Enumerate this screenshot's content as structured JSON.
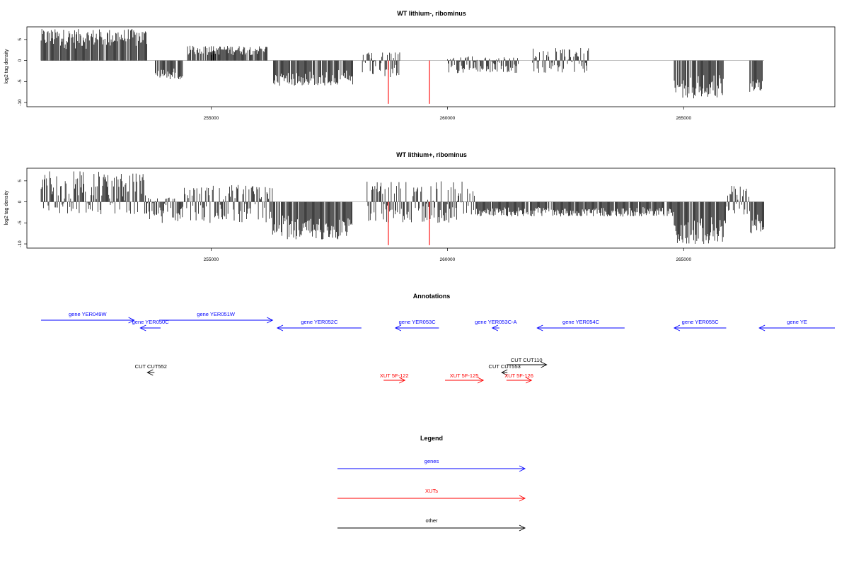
{
  "chart_data": [
    {
      "type": "bar",
      "title": "WT lithium-, ribominus",
      "ylabel": "log2 tag density",
      "xlabel": "",
      "xlim": [
        251100,
        268200
      ],
      "ylim": [
        -11,
        8
      ],
      "y_ticks": [
        "5",
        "0",
        "-5",
        "-10"
      ],
      "x_ticks": [
        "255000",
        "260000",
        "265000"
      ],
      "grid": false,
      "density_segments": [
        {
          "start": 251400,
          "end": 253650,
          "min": 0,
          "max": 7.5
        },
        {
          "start": 253800,
          "end": 254400,
          "min": -4.5,
          "max": 0
        },
        {
          "start": 254500,
          "end": 255100,
          "min": 0,
          "max": 3.5
        },
        {
          "start": 255000,
          "end": 256200,
          "min": 0,
          "max": 3.5
        },
        {
          "start": 256300,
          "end": 258000,
          "min": -6,
          "max": 0
        },
        {
          "start": 258200,
          "end": 259000,
          "min": -4,
          "max": 2
        },
        {
          "start": 260000,
          "end": 261500,
          "min": -3,
          "max": 1
        },
        {
          "start": 261800,
          "end": 263000,
          "min": -3,
          "max": 3
        },
        {
          "start": 264800,
          "end": 265850,
          "min": -9,
          "max": 0
        },
        {
          "start": 266400,
          "end": 266700,
          "min": -7.5,
          "max": 0
        }
      ],
      "highlight_bars": [
        {
          "x": 258750,
          "y": -10.3
        },
        {
          "x": 259620,
          "y": -10.3
        }
      ]
    },
    {
      "type": "bar",
      "title": "WT lithium+, ribominus",
      "ylabel": "log2 tag density",
      "xlabel": "",
      "xlim": [
        251100,
        268200
      ],
      "ylim": [
        -11,
        8
      ],
      "y_ticks": [
        "5",
        "0",
        "-5",
        "-10"
      ],
      "x_ticks": [
        "255000",
        "260000",
        "265000"
      ],
      "grid": false,
      "density_segments": [
        {
          "start": 251400,
          "end": 253650,
          "min": -3,
          "max": 7.5
        },
        {
          "start": 253650,
          "end": 254400,
          "min": -5,
          "max": 1
        },
        {
          "start": 254400,
          "end": 256300,
          "min": -5,
          "max": 4
        },
        {
          "start": 256300,
          "end": 258000,
          "min": -9,
          "max": 0
        },
        {
          "start": 258300,
          "end": 260600,
          "min": -5,
          "max": 5
        },
        {
          "start": 260600,
          "end": 264800,
          "min": -3.5,
          "max": 0
        },
        {
          "start": 264800,
          "end": 265900,
          "min": -10,
          "max": 0
        },
        {
          "start": 265900,
          "end": 266400,
          "min": -3,
          "max": 4
        },
        {
          "start": 266400,
          "end": 266700,
          "min": -7.5,
          "max": 0
        }
      ],
      "highlight_bars": [
        {
          "x": 258750,
          "y": -10.3
        },
        {
          "x": 259620,
          "y": -10.3
        }
      ]
    }
  ],
  "annotations": {
    "title": "Annotations",
    "features": [
      {
        "label": "gene YER049W",
        "start": 251400,
        "end": 253370,
        "strand": "+",
        "row": 0,
        "kind": "genes"
      },
      {
        "label": "gene YER050C",
        "start": 253500,
        "end": 253930,
        "strand": "-",
        "row": 1,
        "kind": "genes"
      },
      {
        "label": "gene YER051W",
        "start": 253900,
        "end": 256300,
        "strand": "+",
        "row": 0,
        "kind": "genes"
      },
      {
        "label": "gene YER052C",
        "start": 256400,
        "end": 258180,
        "strand": "-",
        "row": 1,
        "kind": "genes"
      },
      {
        "label": "gene YER053C",
        "start": 258900,
        "end": 259820,
        "strand": "-",
        "row": 1,
        "kind": "genes"
      },
      {
        "label": "gene YER053C-A",
        "start": 260950,
        "end": 261100,
        "strand": "-",
        "row": 1,
        "kind": "genes"
      },
      {
        "label": "gene YER054C",
        "start": 261900,
        "end": 263750,
        "strand": "-",
        "row": 1,
        "kind": "genes"
      },
      {
        "label": "gene YER055C",
        "start": 264800,
        "end": 265900,
        "strand": "-",
        "row": 1,
        "kind": "genes"
      },
      {
        "label": "gene YE",
        "start": 266600,
        "end": 268200,
        "strand": "-",
        "row": 1,
        "kind": "genes"
      },
      {
        "label": "CUT CUT552",
        "start": 253650,
        "end": 253800,
        "strand": "-",
        "row": 2,
        "kind": "other"
      },
      {
        "label": "CUT CUT110",
        "start": 261250,
        "end": 262100,
        "strand": "+",
        "row": 3,
        "kind": "other"
      },
      {
        "label": "CUT CUT553",
        "start": 261150,
        "end": 261270,
        "strand": "-",
        "row": 4,
        "kind": "other"
      },
      {
        "label": "XUT 5F-122",
        "start": 258650,
        "end": 259100,
        "strand": "+",
        "row": 5,
        "kind": "XUTs"
      },
      {
        "label": "XUT 5F-125",
        "start": 259950,
        "end": 260760,
        "strand": "+",
        "row": 5,
        "kind": "XUTs"
      },
      {
        "label": "XUT 5F-126",
        "start": 261250,
        "end": 261780,
        "strand": "+",
        "row": 5,
        "kind": "XUTs"
      }
    ]
  },
  "legend": {
    "title": "Legend",
    "items": [
      {
        "label": "genes",
        "color": "#0000ff"
      },
      {
        "label": "XUTs",
        "color": "#ff0000"
      },
      {
        "label": "other",
        "color": "#000000"
      }
    ]
  },
  "colors": {
    "genes": "#0000ff",
    "XUTs": "#ff0000",
    "other": "#000000",
    "bars": "#000000",
    "highlight": "#ff0000"
  }
}
